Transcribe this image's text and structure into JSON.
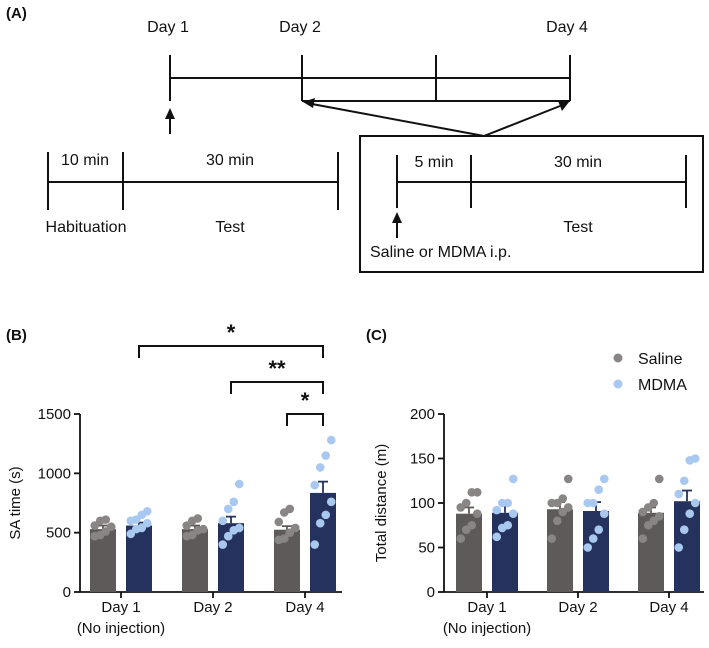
{
  "panel_a": {
    "label": "(A)",
    "timeline_days": [
      "Day 1",
      "Day 2",
      "Day 4"
    ],
    "habituation_duration": "10 min",
    "habituation_label": "Habituation",
    "test_duration_left": "30 min",
    "test_label_left": "Test",
    "injection_duration": "5 min",
    "test_duration_right": "30 min",
    "test_label_right": "Test",
    "injection_label": "Saline or MDMA i.p."
  },
  "legend": {
    "saline": "Saline",
    "mdma": "MDMA"
  },
  "colors": {
    "saline_bar": "#5f5a5a",
    "saline_dot": "#8a8585",
    "mdma_bar": "#25325e",
    "mdma_dot": "#a9c8ef"
  },
  "chart_data": [
    {
      "panel": "(B)",
      "type": "bar",
      "ylabel": "SA time (s)",
      "xlabel": "",
      "ylim": [
        0,
        1500
      ],
      "yticks": [
        0,
        500,
        1000,
        1500
      ],
      "categories": [
        "Day 1",
        "Day 2",
        "Day 4"
      ],
      "category_sublabels": [
        "(No injection)",
        "",
        ""
      ],
      "series": [
        {
          "name": "Saline",
          "values": [
            530,
            530,
            525
          ],
          "errors": [
            30,
            30,
            30
          ],
          "points": [
            [
              480,
              510,
              560,
              600,
              470,
              550,
              610
            ],
            [
              480,
              520,
              560,
              600,
              470,
              530,
              620
            ],
            [
              440,
              500,
              540,
              590,
              450,
              670,
              700
            ]
          ]
        },
        {
          "name": "MDMA",
          "values": [
            560,
            580,
            835
          ],
          "errors": [
            25,
            55,
            95
          ],
          "points": [
            [
              490,
              540,
              580,
              610,
              650,
              680,
              600,
              530
            ],
            [
              400,
              470,
              540,
              600,
              700,
              760,
              910,
              520
            ],
            [
              400,
              580,
              650,
              760,
              900,
              1050,
              1150,
              1280
            ]
          ]
        }
      ],
      "significance": [
        {
          "from": "Day 1 MDMA",
          "to": "Day 4 MDMA",
          "label": "*"
        },
        {
          "from": "Day 2 MDMA",
          "to": "Day 4 MDMA",
          "label": "**"
        },
        {
          "from": "Day 4 Saline",
          "to": "Day 4 MDMA",
          "label": "*"
        }
      ]
    },
    {
      "panel": "(C)",
      "type": "bar",
      "ylabel": "Total distance (m)",
      "xlabel": "",
      "ylim": [
        0,
        200
      ],
      "yticks": [
        0,
        50,
        100,
        150,
        200
      ],
      "categories": [
        "Day 1",
        "Day 2",
        "Day 4"
      ],
      "category_sublabels": [
        "(No injection)",
        "",
        ""
      ],
      "legend_position": "top-right",
      "series": [
        {
          "name": "Saline",
          "values": [
            88,
            93,
            89
          ],
          "errors": [
            7,
            8,
            6
          ],
          "points": [
            [
              60,
              75,
              88,
              100,
              112,
              112,
              95,
              70
            ],
            [
              60,
              80,
              95,
              100,
              127,
              105,
              100,
              90
            ],
            [
              60,
              75,
              90,
              100,
              127,
              95,
              85,
              80
            ]
          ]
        },
        {
          "name": "MDMA",
          "values": [
            89,
            91,
            102
          ],
          "errors": [
            8,
            10,
            12
          ],
          "points": [
            [
              62,
              75,
              88,
              100,
              127,
              100,
              92,
              72
            ],
            [
              50,
              70,
              88,
              100,
              115,
              127,
              100,
              60
            ],
            [
              50,
              70,
              88,
              100,
              148,
              150,
              125,
              110
            ]
          ]
        }
      ]
    }
  ]
}
